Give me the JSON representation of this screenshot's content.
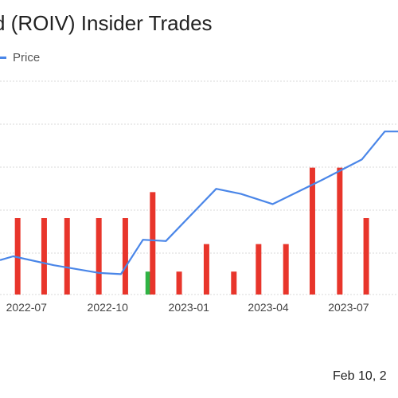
{
  "title": "d (ROIV) Insider Trades",
  "legend": {
    "price_label": "Price"
  },
  "date_text": "Feb 10, 2",
  "colors": {
    "price_line": "#4a86e8",
    "sell_bar": "#e8352b",
    "buy_bar": "#2fb344",
    "grid": "#d9d9d9"
  },
  "chart_data": {
    "type": "bar",
    "title": "d (ROIV) Insider Trades",
    "xlabel": "",
    "ylabel": "",
    "grid": true,
    "legend_placement": "top-left",
    "x_ticks": [
      "2022-07",
      "2022-10",
      "2023-01",
      "2023-04",
      "2023-07"
    ],
    "x_range": [
      "2022-06-01",
      "2023-08-26"
    ],
    "price_series": {
      "name": "Price",
      "points": [
        {
          "x": "2022-06-01",
          "y": 0.27
        },
        {
          "x": "2022-06-16",
          "y": 0.3
        },
        {
          "x": "2022-08-01",
          "y": 0.23
        },
        {
          "x": "2022-09-21",
          "y": 0.17
        },
        {
          "x": "2022-10-16",
          "y": 0.16
        },
        {
          "x": "2022-11-10",
          "y": 0.43
        },
        {
          "x": "2022-12-06",
          "y": 0.42
        },
        {
          "x": "2023-02-01",
          "y": 0.83
        },
        {
          "x": "2023-03-01",
          "y": 0.79
        },
        {
          "x": "2023-04-06",
          "y": 0.71
        },
        {
          "x": "2023-06-01",
          "y": 0.9
        },
        {
          "x": "2023-07-16",
          "y": 1.06
        },
        {
          "x": "2023-08-11",
          "y": 1.28
        },
        {
          "x": "2023-08-26",
          "y": 1.28
        }
      ]
    },
    "trade_bars": [
      {
        "x": "2022-06-21",
        "type": "sell",
        "value": 0.5
      },
      {
        "x": "2022-07-21",
        "type": "sell",
        "value": 0.5
      },
      {
        "x": "2022-08-16",
        "type": "sell",
        "value": 0.5
      },
      {
        "x": "2022-09-21",
        "type": "sell",
        "value": 0.5
      },
      {
        "x": "2022-10-21",
        "type": "sell",
        "value": 0.5
      },
      {
        "x": "2022-11-16",
        "type": "buy",
        "value": 0.15
      },
      {
        "x": "2022-11-21",
        "type": "sell",
        "value": 0.67
      },
      {
        "x": "2022-12-21",
        "type": "sell",
        "value": 0.15
      },
      {
        "x": "2023-01-21",
        "type": "sell",
        "value": 0.33
      },
      {
        "x": "2023-02-21",
        "type": "sell",
        "value": 0.15
      },
      {
        "x": "2023-03-21",
        "type": "sell",
        "value": 0.33
      },
      {
        "x": "2023-04-21",
        "type": "sell",
        "value": 0.33
      },
      {
        "x": "2023-05-21",
        "type": "sell",
        "value": 0.83
      },
      {
        "x": "2023-06-21",
        "type": "sell",
        "value": 0.83
      },
      {
        "x": "2023-07-21",
        "type": "sell",
        "value": 0.5
      }
    ]
  }
}
